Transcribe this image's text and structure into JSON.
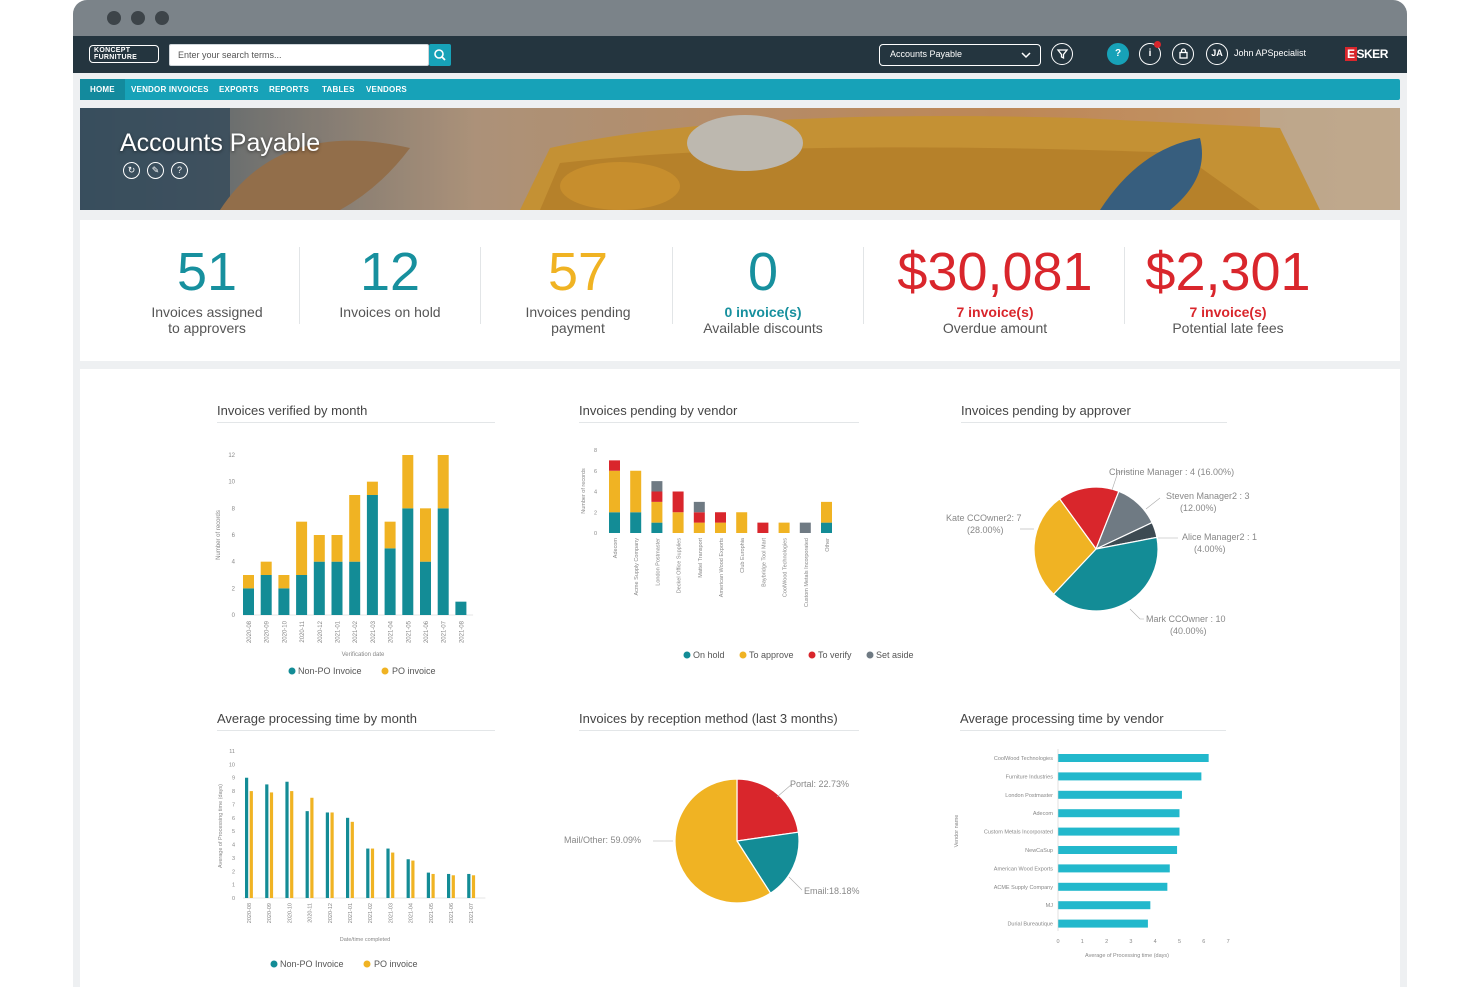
{
  "topbar": {
    "logo_text": "KONCEPT FURNITURE",
    "search_placeholder": "Enter your search terms...",
    "app_selector": "Accounts Payable",
    "help_label": "?",
    "info_label": "i",
    "user_initials": "JA",
    "user_name": "John APSpecialist",
    "brand": "ESKER"
  },
  "nav": {
    "items": [
      {
        "label": "HOME",
        "active": true
      },
      {
        "label": "VENDOR INVOICES"
      },
      {
        "label": "EXPORTS"
      },
      {
        "label": "REPORTS"
      },
      {
        "label": "TABLES"
      },
      {
        "label": "VENDORS"
      }
    ]
  },
  "hero": {
    "title": "Accounts Payable"
  },
  "kpis": [
    {
      "value": "51",
      "label1": "Invoices assigned",
      "label2": "to approvers",
      "color": "#17909e"
    },
    {
      "value": "12",
      "label1": "Invoices on hold",
      "label2": "",
      "color": "#17909e"
    },
    {
      "value": "57",
      "label1": "Invoices pending",
      "label2": "payment",
      "color": "#f0b323"
    },
    {
      "value": "0",
      "sub": "0 invoice(s)",
      "label1": "Available discounts",
      "color": "#17909e"
    },
    {
      "value": "$30,081",
      "sub": "7 invoice(s)",
      "label1": "Overdue amount",
      "color": "#d9262c"
    },
    {
      "value": "$2,301",
      "sub": "7 invoice(s)",
      "label1": "Potential late fees",
      "color": "#d9262c"
    }
  ],
  "colors": {
    "teal": "#138c96",
    "yellow": "#f0b323",
    "red": "#d9262c",
    "gray": "#6f7a83",
    "dark": "#3d4a52",
    "cyan": "#22b8cc"
  },
  "chart_data": [
    {
      "title": "Invoices verified by month",
      "type": "bar",
      "stacked": true,
      "categories": [
        "2020-08",
        "2020-09",
        "2020-10",
        "2020-11",
        "2020-12",
        "2021-01",
        "2021-02",
        "2021-03",
        "2021-04",
        "2021-05",
        "2021-06",
        "2021-07",
        "2021-08"
      ],
      "series": [
        {
          "name": "Non-PO Invoice",
          "values": [
            2,
            3,
            2,
            3,
            4,
            4,
            4,
            9,
            5,
            8,
            4,
            8,
            1
          ]
        },
        {
          "name": "PO invoice",
          "values": [
            1,
            1,
            1,
            4,
            2,
            2,
            5,
            1,
            2,
            4,
            4,
            4,
            0
          ]
        }
      ],
      "xlabel": "Verification date",
      "ylabel": "Number of records",
      "ylim": [
        0,
        12
      ],
      "yticks": [
        0,
        2,
        4,
        6,
        8,
        10,
        12
      ]
    },
    {
      "title": "Invoices pending by vendor",
      "type": "bar",
      "stacked": true,
      "categories": [
        "Adecom",
        "Acme Supply Company",
        "London Postmaster",
        "Deckel Office Supplies",
        "Mattel Transport",
        "American Wood Exports",
        "Club Europhia",
        "Baybridge Tool Mart",
        "CoolWood Technologies",
        "Custom Metals Incorporated",
        "Other"
      ],
      "series": [
        {
          "name": "On hold",
          "values": [
            2,
            2,
            1,
            0,
            0,
            0,
            0,
            0,
            0,
            0,
            1
          ]
        },
        {
          "name": "To approve",
          "values": [
            4,
            4,
            2,
            2,
            1,
            1,
            2,
            0,
            1,
            0,
            2
          ]
        },
        {
          "name": "To verify",
          "values": [
            1,
            0,
            1,
            2,
            1,
            1,
            0,
            1,
            0,
            0,
            0
          ]
        },
        {
          "name": "Set aside",
          "values": [
            0,
            0,
            1,
            0,
            1,
            0,
            0,
            0,
            0,
            1,
            0
          ]
        }
      ],
      "ylabel": "Number of records",
      "ylim": [
        0,
        8
      ],
      "yticks": [
        0,
        2,
        4,
        6,
        8
      ]
    },
    {
      "title": "Invoices pending by approver",
      "type": "pie",
      "slices": [
        {
          "label": "Christine Manager : 4 (16.00%)",
          "value": 4
        },
        {
          "label": "Steven Manager2 : 3 (12.00%)",
          "value": 3
        },
        {
          "label": "Alice Manager2 : 1 (4.00%)",
          "value": 1
        },
        {
          "label": "Mark CCOwner : 10 (40.00%)",
          "value": 10
        },
        {
          "label": "Kate CCOwner2: 7 (28.00%)",
          "value": 7
        }
      ]
    },
    {
      "title": "Average processing time by month",
      "type": "bar",
      "categories": [
        "2020-08",
        "2020-09",
        "2020-10",
        "2020-11",
        "2020-12",
        "2021-01",
        "2021-02",
        "2021-03",
        "2021-04",
        "2021-05",
        "2021-06",
        "2021-07"
      ],
      "series": [
        {
          "name": "Non-PO Invoice",
          "values": [
            9,
            8.5,
            8.7,
            6.5,
            6.4,
            6,
            3.7,
            3.7,
            2.9,
            1.9,
            1.8,
            1.8
          ]
        },
        {
          "name": "PO invoice",
          "values": [
            8,
            7.9,
            8,
            7.5,
            6.4,
            5.7,
            3.7,
            3.4,
            2.8,
            1.8,
            1.7,
            1.7
          ]
        }
      ],
      "xlabel": "Date/time completed",
      "ylabel": "Average of Processing time (days)",
      "ylim": [
        0,
        11
      ],
      "yticks": [
        0,
        1,
        2,
        3,
        4,
        5,
        6,
        7,
        8,
        9,
        10,
        11
      ]
    },
    {
      "title": "Invoices by reception method (last 3 months)",
      "type": "pie",
      "slices": [
        {
          "label": "Portal: 22.73%",
          "value": 22.73
        },
        {
          "label": "Email:18.18%",
          "value": 18.18
        },
        {
          "label": "Mail/Other: 59.09%",
          "value": 59.09
        }
      ]
    },
    {
      "title": "Average processing time by vendor",
      "type": "bar",
      "orientation": "horizontal",
      "categories": [
        "CoolWood Technologies",
        "Furniture Industries",
        "London Postmaster",
        "Adecom",
        "Custom Metals Incorporated",
        "NewCaSup",
        "American Wood Exports",
        "ACME Supply Company",
        "MJ",
        "Durial Bureautique"
      ],
      "values": [
        6.2,
        5.9,
        5.1,
        5.0,
        5.0,
        4.9,
        4.6,
        4.5,
        3.8,
        3.7
      ],
      "xlabel": "Average of Processing time (days)",
      "ylabel": "Vendor name",
      "xlim": [
        0,
        7
      ],
      "xticks": [
        0,
        1,
        2,
        3,
        4,
        5,
        6,
        7
      ]
    }
  ]
}
